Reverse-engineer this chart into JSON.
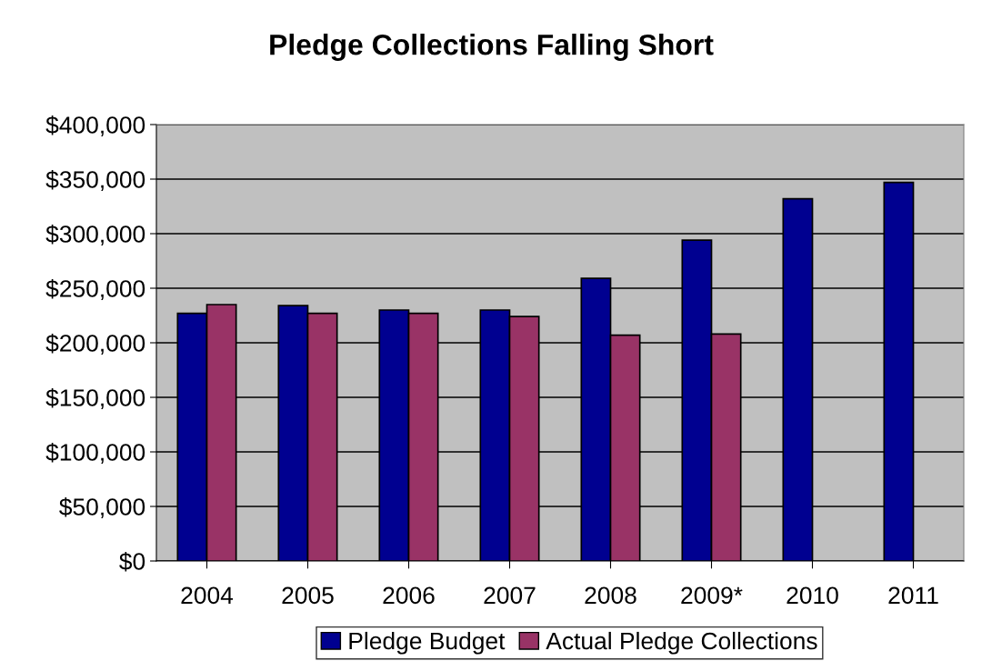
{
  "chart_data": {
    "type": "bar",
    "title": "Pledge Collections Falling Short",
    "categories": [
      "2004",
      "2005",
      "2006",
      "2007",
      "2008",
      "2009*",
      "2010",
      "2011"
    ],
    "series": [
      {
        "name": "Pledge Budget",
        "color": "#000090",
        "values": [
          227000,
          234000,
          230000,
          230000,
          259000,
          294000,
          332000,
          347000
        ]
      },
      {
        "name": "Actual Pledge Collections",
        "color": "#993366",
        "values": [
          235000,
          227000,
          227000,
          224000,
          207000,
          208000,
          null,
          null
        ]
      }
    ],
    "ylim": [
      0,
      400000
    ],
    "yticks": [
      {
        "value": 0,
        "label": "$0"
      },
      {
        "value": 50000,
        "label": "$50,000"
      },
      {
        "value": 100000,
        "label": "$100,000"
      },
      {
        "value": 150000,
        "label": "$150,000"
      },
      {
        "value": 200000,
        "label": "$200,000"
      },
      {
        "value": 250000,
        "label": "$250,000"
      },
      {
        "value": 300000,
        "label": "$300,000"
      },
      {
        "value": 350000,
        "label": "$350,000"
      },
      {
        "value": 400000,
        "label": "$400,000"
      }
    ],
    "grid": "y",
    "legend": "bottom"
  }
}
